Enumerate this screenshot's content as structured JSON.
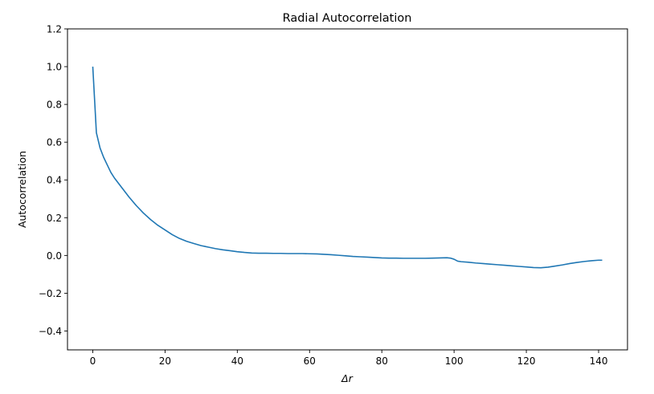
{
  "chart_data": {
    "type": "line",
    "title": "Radial Autocorrelation",
    "xlabel": "Δr",
    "ylabel": "Autocorrelation",
    "xlim": [
      -7,
      148
    ],
    "ylim": [
      -0.5,
      1.2
    ],
    "xticks": [
      0,
      20,
      40,
      60,
      80,
      100,
      120,
      140
    ],
    "yticks": [
      -0.4,
      -0.2,
      0.0,
      0.2,
      0.4,
      0.6,
      0.8,
      1.0,
      1.2
    ],
    "ytick_labels": [
      "−0.4",
      "−0.2",
      "0.0",
      "0.2",
      "0.4",
      "0.6",
      "0.8",
      "1.0",
      "1.2"
    ],
    "grid": false,
    "line_color": "#1f77b4",
    "series": [
      {
        "x": [
          0,
          1,
          2,
          3,
          4,
          5,
          6,
          8,
          10,
          12,
          14,
          16,
          18,
          20,
          22,
          24,
          26,
          28,
          30,
          32,
          34,
          36,
          38,
          40,
          42,
          44,
          46,
          48,
          50,
          52,
          54,
          56,
          58,
          60,
          62,
          64,
          66,
          68,
          70,
          72,
          74,
          76,
          78,
          80,
          82,
          84,
          86,
          88,
          90,
          92,
          94,
          96,
          98,
          99,
          100,
          101,
          102,
          104,
          106,
          108,
          110,
          112,
          114,
          116,
          118,
          120,
          122,
          124,
          126,
          128,
          130,
          132,
          134,
          136,
          138,
          140,
          141
        ],
        "y": [
          1.0,
          0.65,
          0.57,
          0.52,
          0.48,
          0.44,
          0.41,
          0.36,
          0.31,
          0.265,
          0.225,
          0.19,
          0.16,
          0.135,
          0.11,
          0.09,
          0.075,
          0.063,
          0.052,
          0.044,
          0.036,
          0.03,
          0.025,
          0.02,
          0.016,
          0.013,
          0.012,
          0.012,
          0.011,
          0.011,
          0.01,
          0.01,
          0.01,
          0.009,
          0.008,
          0.006,
          0.004,
          0.001,
          -0.002,
          -0.005,
          -0.007,
          -0.009,
          -0.011,
          -0.013,
          -0.014,
          -0.014,
          -0.015,
          -0.015,
          -0.015,
          -0.015,
          -0.014,
          -0.013,
          -0.012,
          -0.014,
          -0.02,
          -0.03,
          -0.033,
          -0.036,
          -0.04,
          -0.043,
          -0.046,
          -0.049,
          -0.052,
          -0.055,
          -0.058,
          -0.061,
          -0.064,
          -0.065,
          -0.062,
          -0.056,
          -0.05,
          -0.043,
          -0.037,
          -0.032,
          -0.028,
          -0.025,
          -0.025
        ]
      }
    ]
  }
}
